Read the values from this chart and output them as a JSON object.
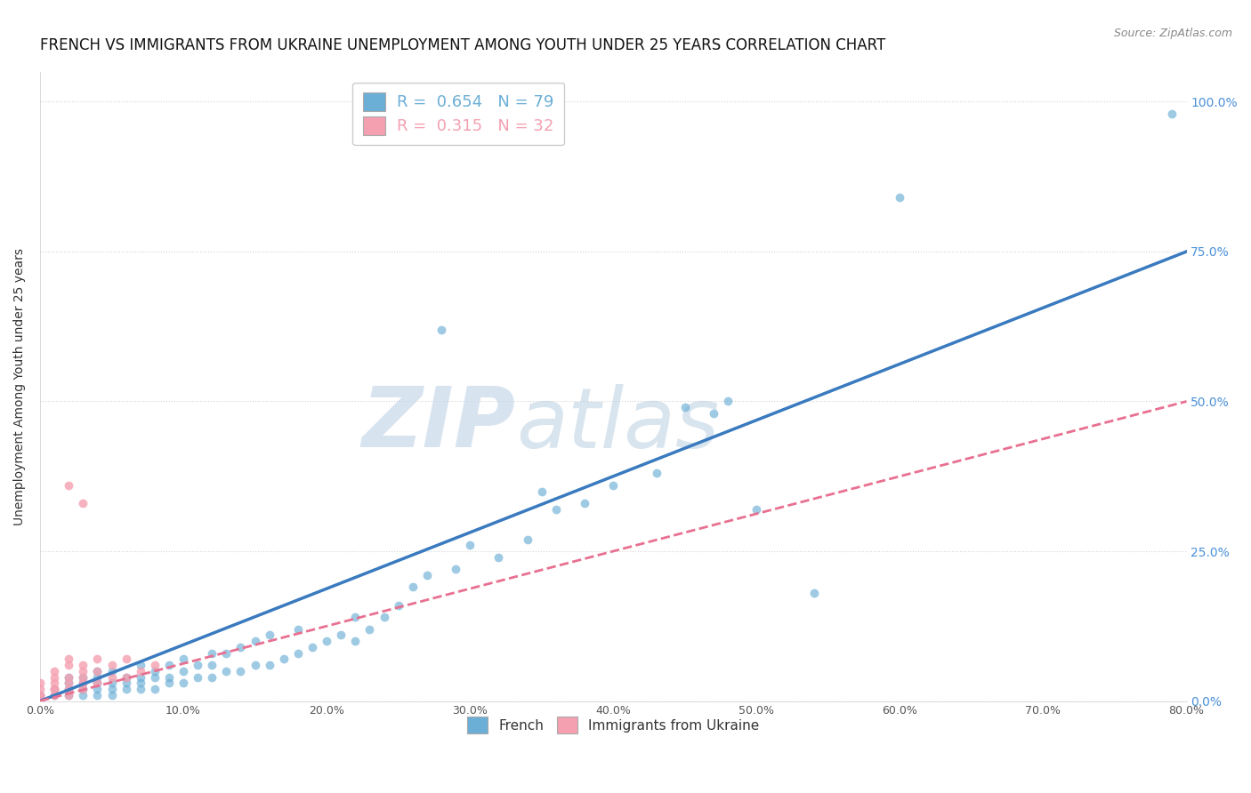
{
  "title": "FRENCH VS IMMIGRANTS FROM UKRAINE UNEMPLOYMENT AMONG YOUTH UNDER 25 YEARS CORRELATION CHART",
  "source": "Source: ZipAtlas.com",
  "ylabel_label": "Unemployment Among Youth under 25 years",
  "legend_entries": [
    {
      "label": "R =  0.654   N = 79",
      "color": "#6baed6"
    },
    {
      "label": "R =  0.315   N = 32",
      "color": "#f4a0b0"
    }
  ],
  "series_french": {
    "color": "#6baed6",
    "R": 0.654,
    "N": 79,
    "trend_color": "#3a7abf",
    "trend_style": "solid"
  },
  "series_ukraine": {
    "color": "#f4a0b0",
    "R": 0.315,
    "N": 32,
    "trend_color": "#e87090",
    "trend_style": "dashed"
  },
  "french_x": [
    0.0,
    0.01,
    0.01,
    0.02,
    0.02,
    0.02,
    0.02,
    0.03,
    0.03,
    0.03,
    0.03,
    0.04,
    0.04,
    0.04,
    0.04,
    0.04,
    0.05,
    0.05,
    0.05,
    0.05,
    0.06,
    0.06,
    0.06,
    0.07,
    0.07,
    0.07,
    0.07,
    0.08,
    0.08,
    0.08,
    0.09,
    0.09,
    0.09,
    0.1,
    0.1,
    0.1,
    0.11,
    0.11,
    0.12,
    0.12,
    0.12,
    0.13,
    0.13,
    0.14,
    0.14,
    0.15,
    0.15,
    0.16,
    0.16,
    0.17,
    0.18,
    0.18,
    0.19,
    0.2,
    0.21,
    0.22,
    0.22,
    0.23,
    0.24,
    0.25,
    0.26,
    0.27,
    0.28,
    0.29,
    0.3,
    0.32,
    0.34,
    0.35,
    0.36,
    0.38,
    0.4,
    0.43,
    0.45,
    0.47,
    0.48,
    0.5,
    0.54,
    0.6,
    0.79
  ],
  "french_y": [
    0.01,
    0.01,
    0.02,
    0.01,
    0.02,
    0.03,
    0.04,
    0.01,
    0.02,
    0.03,
    0.04,
    0.01,
    0.02,
    0.03,
    0.04,
    0.05,
    0.01,
    0.02,
    0.03,
    0.05,
    0.02,
    0.03,
    0.04,
    0.02,
    0.03,
    0.04,
    0.06,
    0.02,
    0.04,
    0.05,
    0.03,
    0.04,
    0.06,
    0.03,
    0.05,
    0.07,
    0.04,
    0.06,
    0.04,
    0.06,
    0.08,
    0.05,
    0.08,
    0.05,
    0.09,
    0.06,
    0.1,
    0.06,
    0.11,
    0.07,
    0.08,
    0.12,
    0.09,
    0.1,
    0.11,
    0.1,
    0.14,
    0.12,
    0.14,
    0.16,
    0.19,
    0.21,
    0.62,
    0.22,
    0.26,
    0.24,
    0.27,
    0.35,
    0.32,
    0.33,
    0.36,
    0.38,
    0.49,
    0.48,
    0.5,
    0.32,
    0.18,
    0.84,
    0.98
  ],
  "ukraine_x": [
    0.0,
    0.0,
    0.0,
    0.0,
    0.01,
    0.01,
    0.01,
    0.01,
    0.01,
    0.01,
    0.02,
    0.02,
    0.02,
    0.02,
    0.02,
    0.02,
    0.03,
    0.03,
    0.03,
    0.03,
    0.03,
    0.04,
    0.04,
    0.04,
    0.05,
    0.05,
    0.06,
    0.06,
    0.07,
    0.08,
    0.02,
    0.03
  ],
  "ukraine_y": [
    0.01,
    0.01,
    0.02,
    0.03,
    0.01,
    0.02,
    0.02,
    0.03,
    0.04,
    0.05,
    0.01,
    0.02,
    0.03,
    0.04,
    0.06,
    0.07,
    0.02,
    0.03,
    0.04,
    0.05,
    0.06,
    0.03,
    0.05,
    0.07,
    0.04,
    0.06,
    0.04,
    0.07,
    0.05,
    0.06,
    0.36,
    0.33
  ],
  "watermark_zip": "ZIP",
  "watermark_atlas": "atlas",
  "background_color": "#ffffff",
  "grid_color": "#d0d0d0",
  "xmin": 0.0,
  "xmax": 0.8,
  "ymin": 0.0,
  "ymax": 1.05,
  "french_trend": [
    0.0,
    0.0,
    0.8,
    0.75
  ],
  "ukraine_trend": [
    0.0,
    0.0,
    0.8,
    0.5
  ],
  "title_fontsize": 12,
  "axis_fontsize": 9,
  "legend_fontsize": 12
}
